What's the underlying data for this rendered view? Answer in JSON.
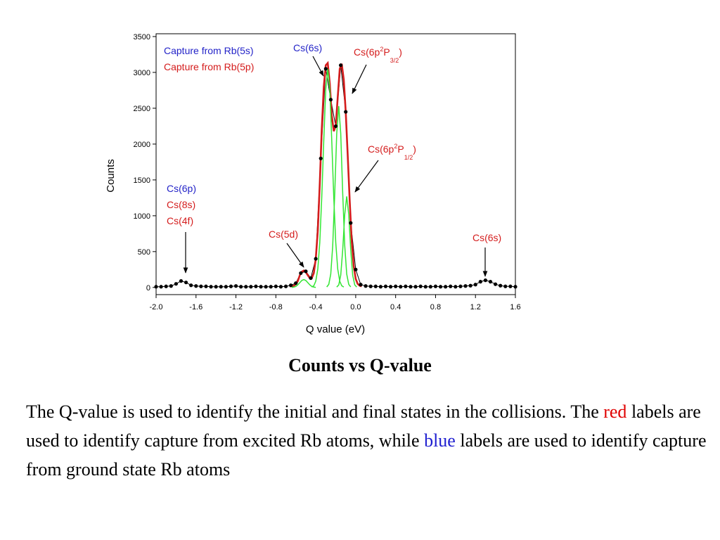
{
  "chart_data": {
    "type": "line",
    "xlabel": "Q value (eV)",
    "ylabel": "Counts",
    "xlim": [
      -2.0,
      1.6
    ],
    "ylim": [
      -100,
      3500
    ],
    "xticks": [
      {
        "value": -2,
        "label": "-2.0"
      },
      -1.6,
      -1.2,
      -0.8,
      -0.4,
      {
        "value": 0,
        "label": "0.0"
      },
      0.4,
      0.8,
      1.2,
      1.6
    ],
    "yticks": [
      0,
      500,
      1000,
      1500,
      2000,
      2500,
      3000,
      3500
    ],
    "legend": [
      {
        "text": "Capture from Rb(5s)",
        "color": "#2323c8"
      },
      {
        "text": "Capture from Rb(5p)",
        "color": "#d41c1c"
      }
    ],
    "series": [
      {
        "color": "#000000",
        "markers": true,
        "x": [
          -2,
          -1.95,
          -1.9,
          -1.85,
          -1.8,
          -1.75,
          -1.7,
          -1.65,
          -1.6,
          -1.55,
          -1.5,
          -1.45,
          -1.4,
          -1.35,
          -1.3,
          -1.25,
          -1.2,
          -1.15,
          -1.1,
          -1.05,
          -1,
          -0.95,
          -0.9,
          -0.85,
          -0.8,
          -0.75,
          -0.7,
          -0.65,
          -0.6,
          -0.55,
          -0.5,
          -0.45,
          -0.4,
          -0.35,
          -0.3,
          -0.25,
          -0.2,
          -0.15,
          -0.1,
          -0.05,
          0,
          0.05,
          0.1,
          0.15,
          0.2,
          0.25,
          0.3,
          0.35,
          0.4,
          0.45,
          0.5,
          0.55,
          0.6,
          0.65,
          0.7,
          0.75,
          0.8,
          0.85,
          0.9,
          0.95,
          1,
          1.05,
          1.1,
          1.15,
          1.2,
          1.25,
          1.3,
          1.35,
          1.4,
          1.45,
          1.5,
          1.55,
          1.6
        ],
        "values": [
          10,
          10,
          15,
          20,
          50,
          90,
          70,
          30,
          20,
          15,
          15,
          10,
          10,
          10,
          10,
          15,
          20,
          10,
          10,
          10,
          15,
          10,
          10,
          10,
          15,
          10,
          15,
          30,
          60,
          200,
          225,
          130,
          400,
          1800,
          3050,
          2620,
          2250,
          3100,
          2450,
          900,
          250,
          40,
          20,
          15,
          15,
          10,
          15,
          10,
          15,
          10,
          15,
          10,
          10,
          15,
          10,
          10,
          15,
          10,
          10,
          15,
          10,
          15,
          20,
          25,
          40,
          80,
          100,
          80,
          45,
          25,
          15,
          15,
          10
        ]
      },
      {
        "color": "#d41c1c",
        "width": 2.6,
        "x": [
          -0.66,
          -0.64,
          -0.62,
          -0.6,
          -0.58,
          -0.56,
          -0.54,
          -0.52,
          -0.5,
          -0.48,
          -0.46,
          -0.44,
          -0.42,
          -0.4,
          -0.38,
          -0.36,
          -0.34,
          -0.32,
          -0.3,
          -0.28,
          -0.26,
          -0.24,
          -0.22,
          -0.2,
          -0.18,
          -0.16,
          -0.14,
          -0.12,
          -0.1,
          -0.08,
          -0.06,
          -0.04,
          -0.02,
          0,
          0.02,
          0.04,
          0.06
        ],
        "values": [
          15,
          18,
          25,
          45,
          90,
          170,
          220,
          235,
          215,
          170,
          130,
          130,
          200,
          400,
          800,
          1450,
          2200,
          2800,
          3100,
          3130,
          2850,
          2400,
          2180,
          2250,
          2650,
          3050,
          3120,
          2900,
          2450,
          1850,
          1200,
          650,
          300,
          120,
          50,
          25,
          15
        ]
      },
      {
        "color": "#33e633",
        "width": 1.5,
        "x": [
          -0.64,
          -0.62,
          -0.6,
          -0.58,
          -0.56,
          -0.54,
          -0.52,
          -0.5,
          -0.48,
          -0.46,
          -0.44,
          -0.42,
          -0.4
        ],
        "values": [
          1,
          5,
          15,
          36,
          67,
          97,
          110,
          97,
          67,
          36,
          15,
          5,
          1
        ]
      },
      {
        "color": "#33e633",
        "width": 1.5,
        "x": [
          -0.44,
          -0.42,
          -0.4,
          -0.38,
          -0.36,
          -0.34,
          -0.32,
          -0.3,
          -0.28,
          -0.26,
          -0.24,
          -0.22,
          -0.2,
          -0.18,
          -0.16,
          -0.14,
          -0.12
        ],
        "values": [
          5,
          24,
          87,
          258,
          628,
          1254,
          2056,
          2763,
          3050,
          2763,
          2056,
          1254,
          628,
          258,
          87,
          24,
          5
        ]
      },
      {
        "color": "#33e633",
        "width": 1.5,
        "x": [
          -0.29,
          -0.27,
          -0.25,
          -0.23,
          -0.21,
          -0.19,
          -0.17,
          -0.15,
          -0.13,
          -0.11,
          -0.09,
          -0.07,
          -0.05
        ],
        "values": [
          7,
          43,
          186,
          582,
          1316,
          2148,
          2530,
          2148,
          1316,
          582,
          186,
          43,
          7
        ]
      },
      {
        "color": "#33e633",
        "width": 1.5,
        "x": [
          -0.19,
          -0.17,
          -0.15,
          -0.13,
          -0.11,
          -0.09,
          -0.07,
          -0.05,
          -0.03,
          -0.01,
          0.01
        ],
        "values": [
          5,
          36,
          171,
          522,
          1017,
          1270,
          1017,
          522,
          171,
          36,
          5
        ]
      }
    ],
    "annotations": [
      {
        "parts": [
          "Cs(6s)"
        ],
        "color": "#2323c8"
      },
      {
        "parts": [
          "Cs(6p",
          "2",
          "P",
          "3/2",
          ")"
        ],
        "color": "#d41c1c"
      },
      {
        "parts": [
          "Cs(6p",
          "2",
          "P",
          "1/2",
          ")"
        ],
        "color": "#d41c1c"
      },
      {
        "parts": [
          "Cs(5d)"
        ],
        "color": "#d41c1c"
      },
      {
        "parts": [
          "Cs(6s)"
        ],
        "color": "#d41c1c"
      },
      {
        "parts": [
          "Cs(6p)"
        ],
        "color": "#2323c8"
      },
      {
        "parts": [
          "Cs(8s)"
        ],
        "color": "#d41c1c"
      },
      {
        "parts": [
          "Cs(4f)"
        ],
        "color": "#d41c1c"
      }
    ]
  },
  "caption": "Counts vs Q-value",
  "paragraph": [
    {
      "text": "The Q-value is used to identify the initial and final states in the collisions.  The "
    },
    {
      "text": "red",
      "color": "#e00000"
    },
    {
      "text": " labels are used to identify capture from excited Rb atoms, while "
    },
    {
      "text": "blue",
      "color": "#2020d0"
    },
    {
      "text": " labels are used to identify capture from ground state Rb atoms"
    }
  ]
}
